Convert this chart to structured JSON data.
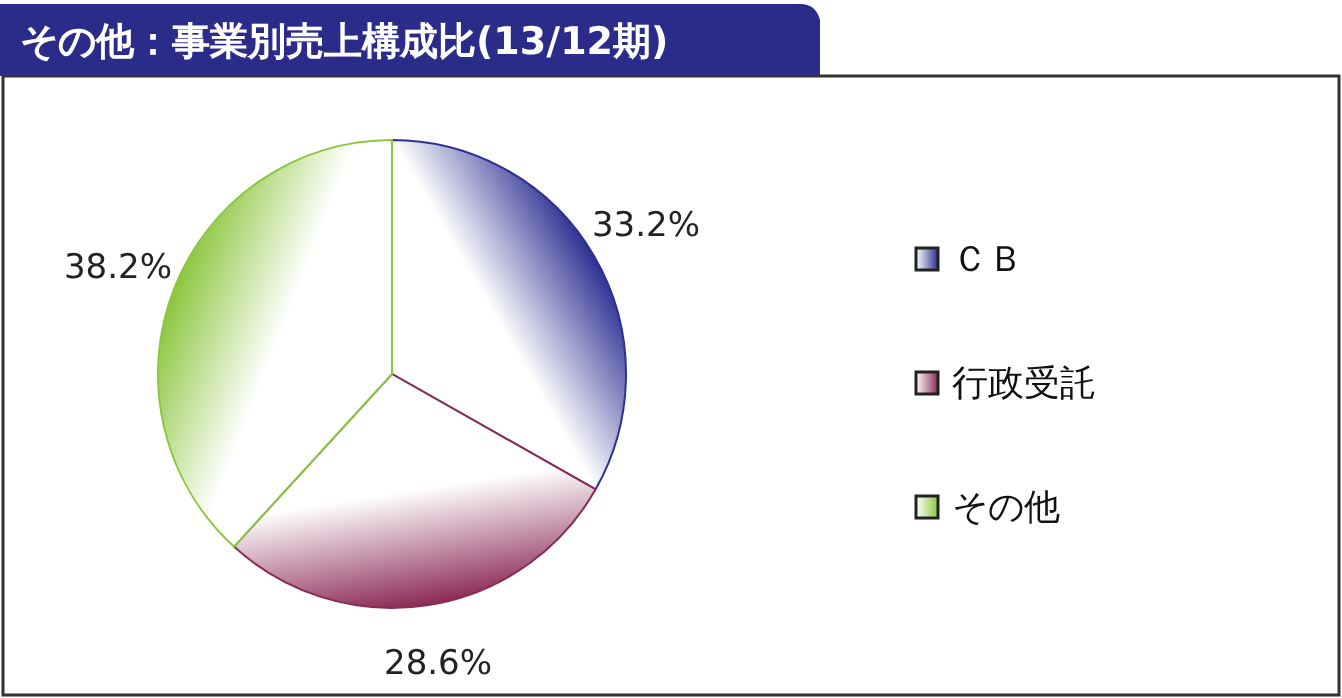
{
  "chart_data": {
    "type": "pie",
    "title": "その他：事業別売上構成比(13/12期)",
    "categories": [
      "ＣＢ",
      "行政受託",
      "その他"
    ],
    "values": [
      33.2,
      28.6,
      38.2
    ],
    "value_labels": [
      "33.2%",
      "28.6%",
      "38.2%"
    ],
    "colors": [
      "#2e3192",
      "#8b2a55",
      "#8cc63f"
    ],
    "legend": "right"
  }
}
